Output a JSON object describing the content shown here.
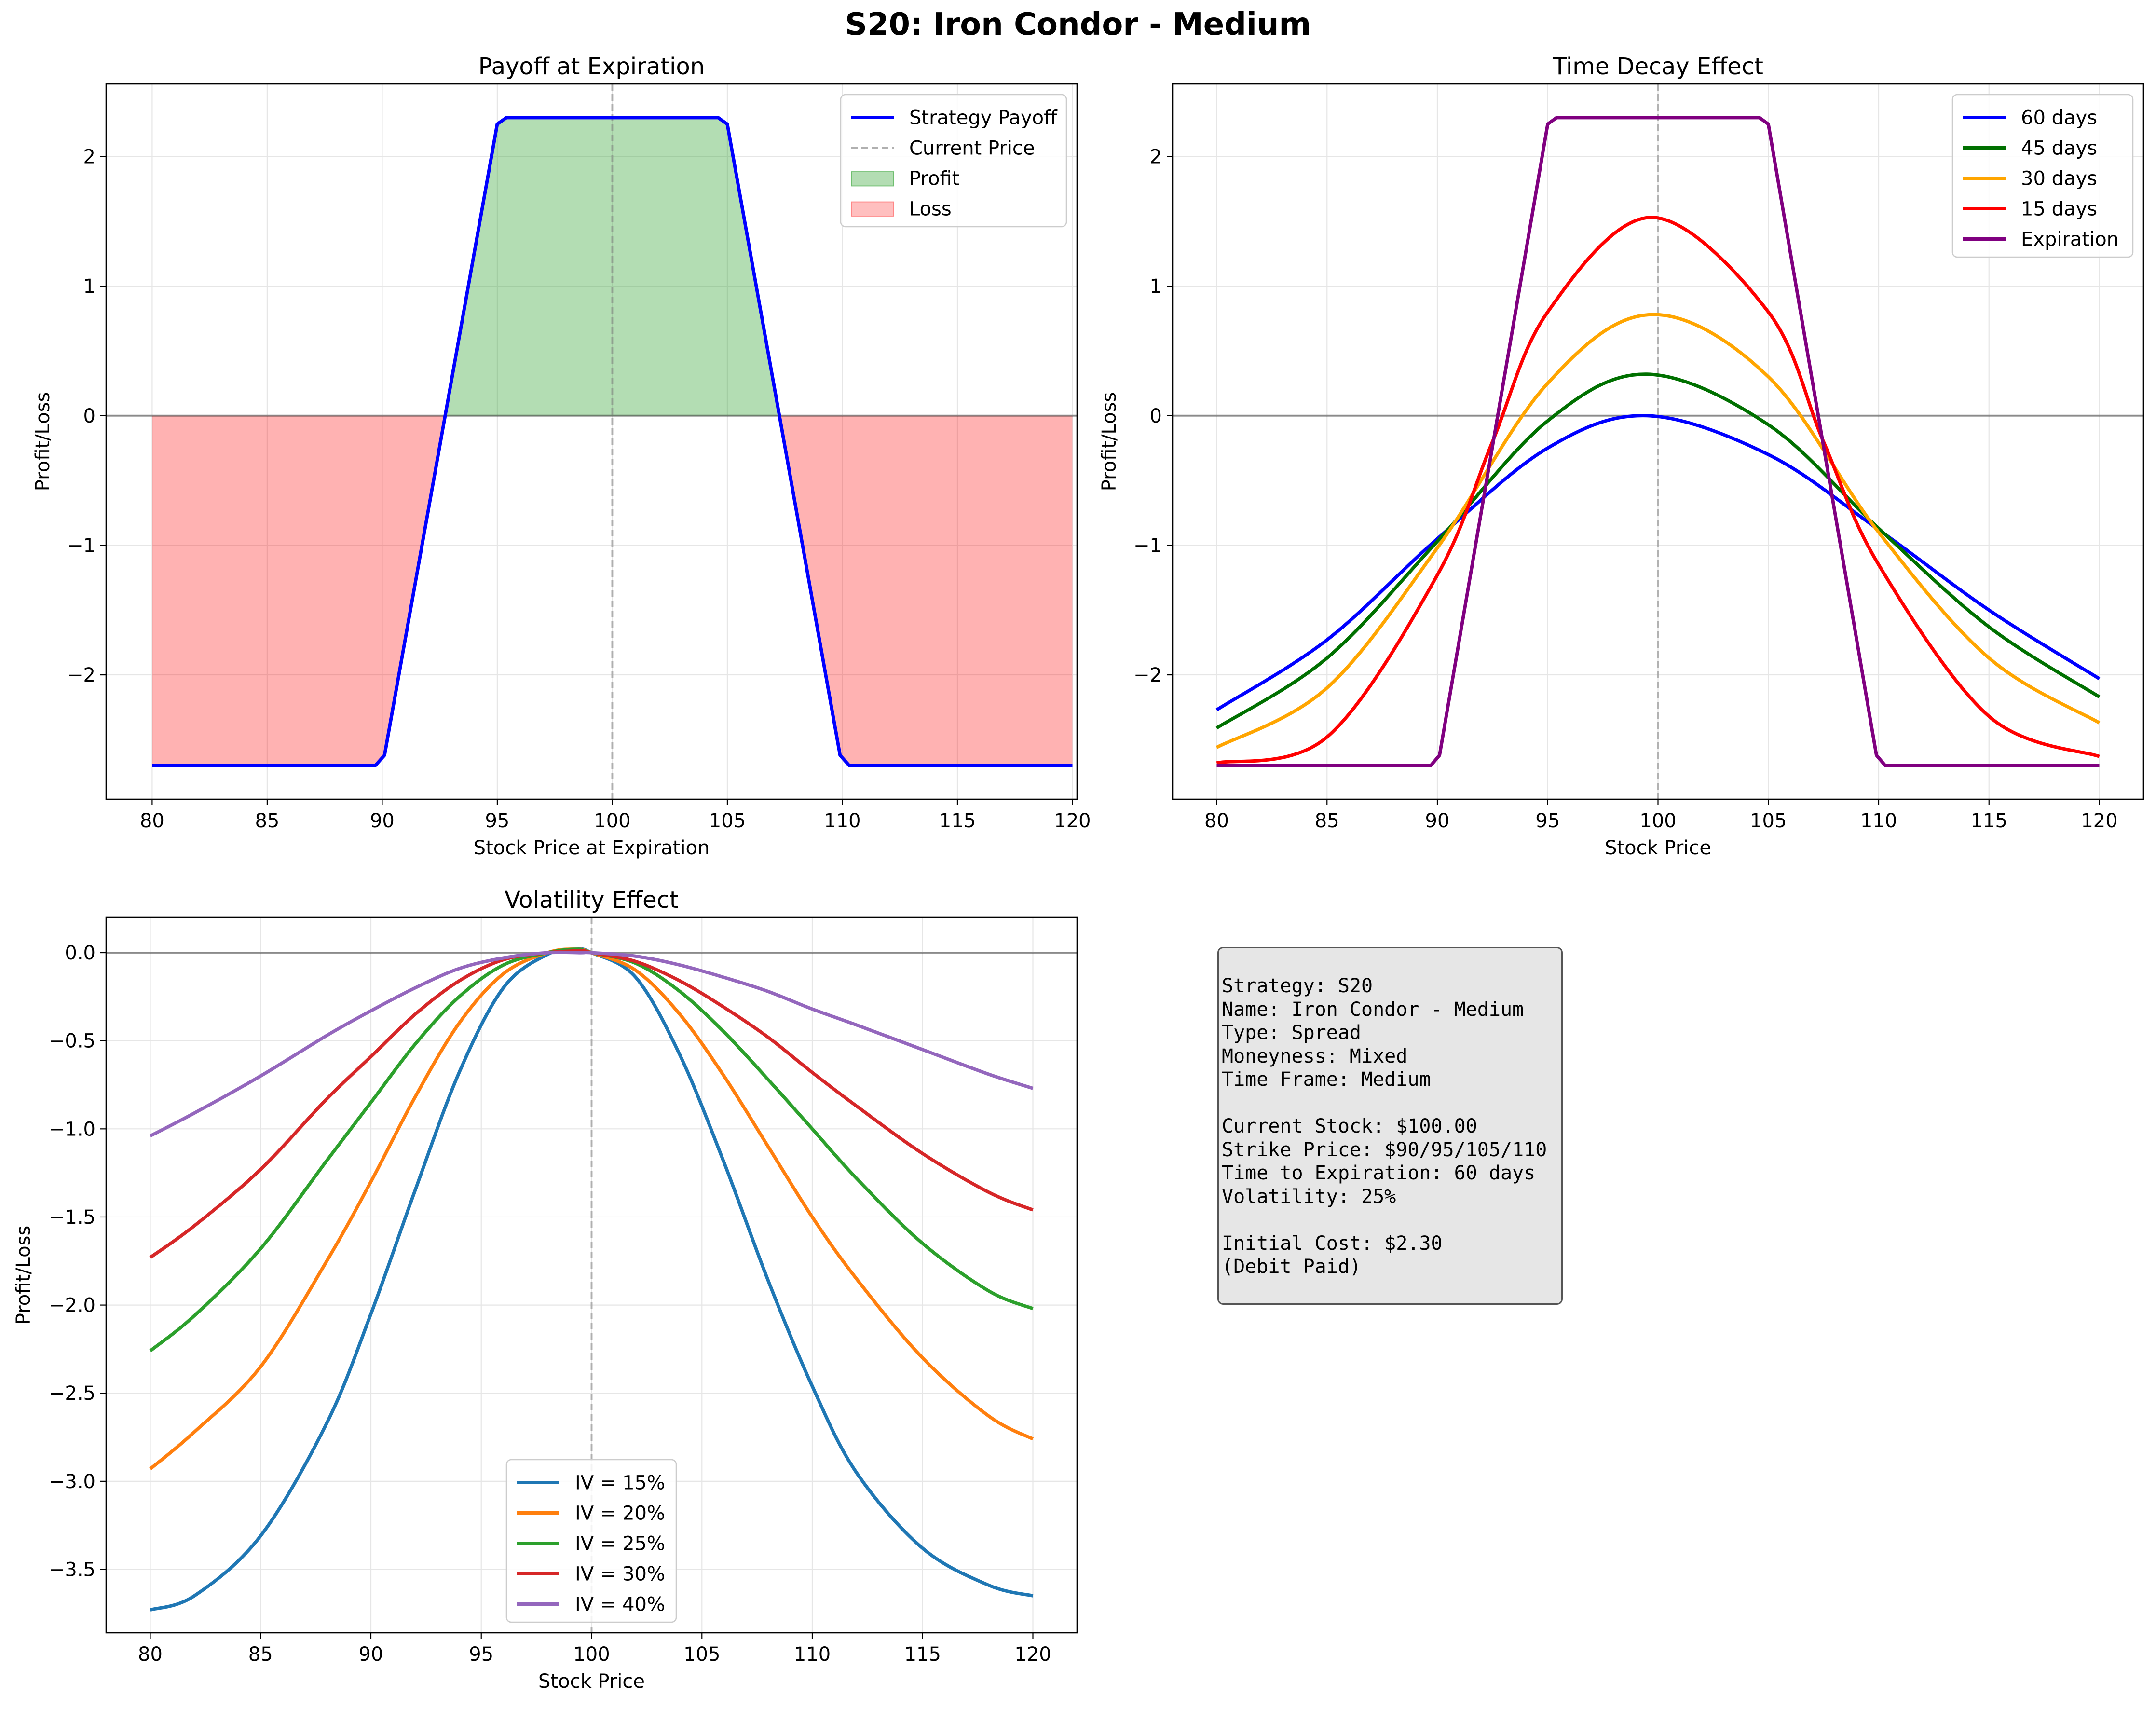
{
  "figure": {
    "title": "S20: Iron Condor - Medium"
  },
  "chart_data": [
    {
      "id": "payoff",
      "type": "area",
      "title": "Payoff at Expiration",
      "xlabel": "Stock Price at Expiration",
      "ylabel": "Profit/Loss",
      "xlim": [
        78,
        120.2
      ],
      "ylim": [
        -2.96,
        2.56
      ],
      "xticks": [
        80,
        85,
        90,
        95,
        100,
        105,
        110,
        115,
        120
      ],
      "yticks": [
        -2,
        -1,
        0,
        1,
        2
      ],
      "ytick_labels": [
        "−2",
        "−1",
        "0",
        "1",
        "2"
      ],
      "legend": "top-right",
      "grid": true,
      "hline": 0,
      "vline": 100,
      "series": [
        {
          "name": "Strategy Payoff",
          "color": "#0000ff",
          "style": "solid",
          "x": [
            80,
            89.7,
            90.1,
            95,
            95.4,
            104.6,
            105,
            109.9,
            110.3,
            120
          ],
          "y": [
            -2.7,
            -2.7,
            -2.62,
            2.25,
            2.3,
            2.3,
            2.25,
            -2.62,
            -2.7,
            -2.7
          ]
        }
      ],
      "legend_entries": [
        {
          "name": "Strategy Payoff",
          "kind": "line",
          "color": "#0000ff"
        },
        {
          "name": "Current Price",
          "kind": "dashed",
          "color": "#b0b0b0"
        },
        {
          "name": "Profit",
          "kind": "patch",
          "color": "#2ca02c"
        },
        {
          "name": "Loss",
          "kind": "patch",
          "color": "#ff4d4d"
        }
      ]
    },
    {
      "id": "timedecay",
      "type": "line",
      "title": "Time Decay Effect",
      "xlabel": "Stock Price",
      "ylabel": "Profit/Loss",
      "xlim": [
        78,
        122
      ],
      "ylim": [
        -2.96,
        2.56
      ],
      "xticks": [
        80,
        85,
        90,
        95,
        100,
        105,
        110,
        115,
        120
      ],
      "yticks": [
        -2,
        -1,
        0,
        1,
        2
      ],
      "ytick_labels": [
        "−2",
        "−1",
        "0",
        "1",
        "2"
      ],
      "legend": "top-right",
      "grid": true,
      "hline": 0,
      "vline": 100,
      "series": [
        {
          "name": "60 days",
          "color": "#0000ff",
          "x": [
            80,
            85,
            90,
            95,
            99.5,
            105,
            110,
            115,
            120
          ],
          "y": [
            -2.27,
            -1.73,
            -0.95,
            -0.25,
            0.0,
            -0.3,
            -0.88,
            -1.5,
            -2.03
          ]
        },
        {
          "name": "45 days",
          "color": "#007000",
          "x": [
            80,
            85,
            90,
            95,
            99.5,
            105,
            110,
            115,
            120
          ],
          "y": [
            -2.41,
            -1.87,
            -0.97,
            -0.04,
            0.32,
            -0.07,
            -0.87,
            -1.63,
            -2.17
          ]
        },
        {
          "name": "30 days",
          "color": "#ffa500",
          "x": [
            80,
            85,
            90,
            95,
            99.7,
            105,
            110,
            115,
            120
          ],
          "y": [
            -2.56,
            -2.1,
            -1.02,
            0.25,
            0.78,
            0.3,
            -0.9,
            -1.87,
            -2.37
          ]
        },
        {
          "name": "15 days",
          "color": "#ff0000",
          "x": [
            80,
            85,
            90,
            92.5,
            95,
            99.7,
            105,
            107.5,
            110,
            115,
            120
          ],
          "y": [
            -2.68,
            -2.48,
            -1.23,
            -0.2,
            0.8,
            1.53,
            0.8,
            -0.2,
            -1.15,
            -2.32,
            -2.63
          ]
        },
        {
          "name": "Expiration",
          "color": "#800080",
          "x": [
            80,
            89.7,
            90.1,
            95,
            95.4,
            104.6,
            105,
            109.9,
            110.3,
            120
          ],
          "y": [
            -2.7,
            -2.7,
            -2.62,
            2.25,
            2.3,
            2.3,
            2.25,
            -2.62,
            -2.7,
            -2.7
          ]
        }
      ]
    },
    {
      "id": "volatility",
      "type": "line",
      "title": "Volatility Effect",
      "xlabel": "Stock Price",
      "ylabel": "Profit/Loss",
      "xlim": [
        78,
        122
      ],
      "ylim": [
        -3.86,
        0.2
      ],
      "xticks": [
        80,
        85,
        90,
        95,
        100,
        105,
        110,
        115,
        120
      ],
      "yticks": [
        0.0,
        -0.5,
        -1.0,
        -1.5,
        -2.0,
        -2.5,
        -3.0,
        -3.5
      ],
      "ytick_labels": [
        "0.0",
        "−0.5",
        "−1.0",
        "−1.5",
        "−2.0",
        "−2.5",
        "−3.0",
        "−3.5"
      ],
      "legend": "bottom-center",
      "grid": true,
      "hline": 0,
      "vline": 100,
      "series": [
        {
          "name": "IV = 15%",
          "color": "#1f77b4",
          "x": [
            80,
            82,
            85,
            88,
            90,
            92,
            94,
            96,
            98,
            99.3,
            100,
            102,
            104,
            106,
            108,
            110,
            112,
            115,
            118,
            120
          ],
          "y": [
            -3.73,
            -3.65,
            -3.31,
            -2.67,
            -2.05,
            -1.35,
            -0.68,
            -0.2,
            -0.01,
            0.02,
            0.0,
            -0.14,
            -0.58,
            -1.19,
            -1.86,
            -2.46,
            -2.95,
            -3.38,
            -3.59,
            -3.65
          ]
        },
        {
          "name": "IV = 20%",
          "color": "#ff7f0e",
          "x": [
            80,
            82,
            85,
            88,
            90,
            92,
            94,
            96,
            98,
            99.3,
            100,
            102,
            104,
            106,
            108,
            110,
            112,
            115,
            118,
            120
          ],
          "y": [
            -2.93,
            -2.72,
            -2.35,
            -1.75,
            -1.3,
            -0.82,
            -0.4,
            -0.12,
            0.0,
            0.02,
            0.0,
            -0.1,
            -0.35,
            -0.7,
            -1.1,
            -1.5,
            -1.85,
            -2.3,
            -2.63,
            -2.76
          ]
        },
        {
          "name": "IV = 25%",
          "color": "#2ca02c",
          "x": [
            80,
            82,
            85,
            88,
            90,
            92,
            94,
            96,
            98,
            99.3,
            100,
            102,
            104,
            106,
            108,
            110,
            112,
            115,
            118,
            120
          ],
          "y": [
            -2.26,
            -2.06,
            -1.68,
            -1.18,
            -0.85,
            -0.52,
            -0.25,
            -0.07,
            0.0,
            0.02,
            0.0,
            -0.06,
            -0.22,
            -0.45,
            -0.72,
            -1.0,
            -1.28,
            -1.65,
            -1.92,
            -2.02
          ]
        },
        {
          "name": "IV = 30%",
          "color": "#d62728",
          "x": [
            80,
            82,
            85,
            88,
            90,
            92,
            94,
            96,
            98,
            99.5,
            100,
            102,
            104,
            106,
            108,
            110,
            112,
            115,
            118,
            120
          ],
          "y": [
            -1.73,
            -1.55,
            -1.23,
            -0.83,
            -0.59,
            -0.35,
            -0.16,
            -0.04,
            0.0,
            0.01,
            0.0,
            -0.05,
            -0.16,
            -0.31,
            -0.48,
            -0.68,
            -0.87,
            -1.14,
            -1.36,
            -1.46
          ]
        },
        {
          "name": "IV = 40%",
          "color": "#9467bd",
          "x": [
            80,
            82,
            85,
            88,
            90,
            92,
            94,
            96,
            98,
            99.5,
            100,
            102,
            104,
            106,
            108,
            110,
            112,
            115,
            118,
            120
          ],
          "y": [
            -1.04,
            -0.91,
            -0.7,
            -0.47,
            -0.33,
            -0.2,
            -0.09,
            -0.03,
            0.0,
            0.0,
            0.0,
            -0.02,
            -0.07,
            -0.14,
            -0.22,
            -0.32,
            -0.41,
            -0.55,
            -0.69,
            -0.77
          ]
        }
      ]
    }
  ],
  "info": {
    "lines": [
      "Strategy: S20",
      "Name: Iron Condor - Medium",
      "Type: Spread",
      "Moneyness: Mixed",
      "Time Frame: Medium",
      "",
      "Current Stock: $100.00",
      "Strike Price: $90/95/105/110",
      "Time to Expiration: 60 days",
      "Volatility: 25%",
      "",
      "Initial Cost: $2.30",
      "(Debit Paid)"
    ]
  }
}
